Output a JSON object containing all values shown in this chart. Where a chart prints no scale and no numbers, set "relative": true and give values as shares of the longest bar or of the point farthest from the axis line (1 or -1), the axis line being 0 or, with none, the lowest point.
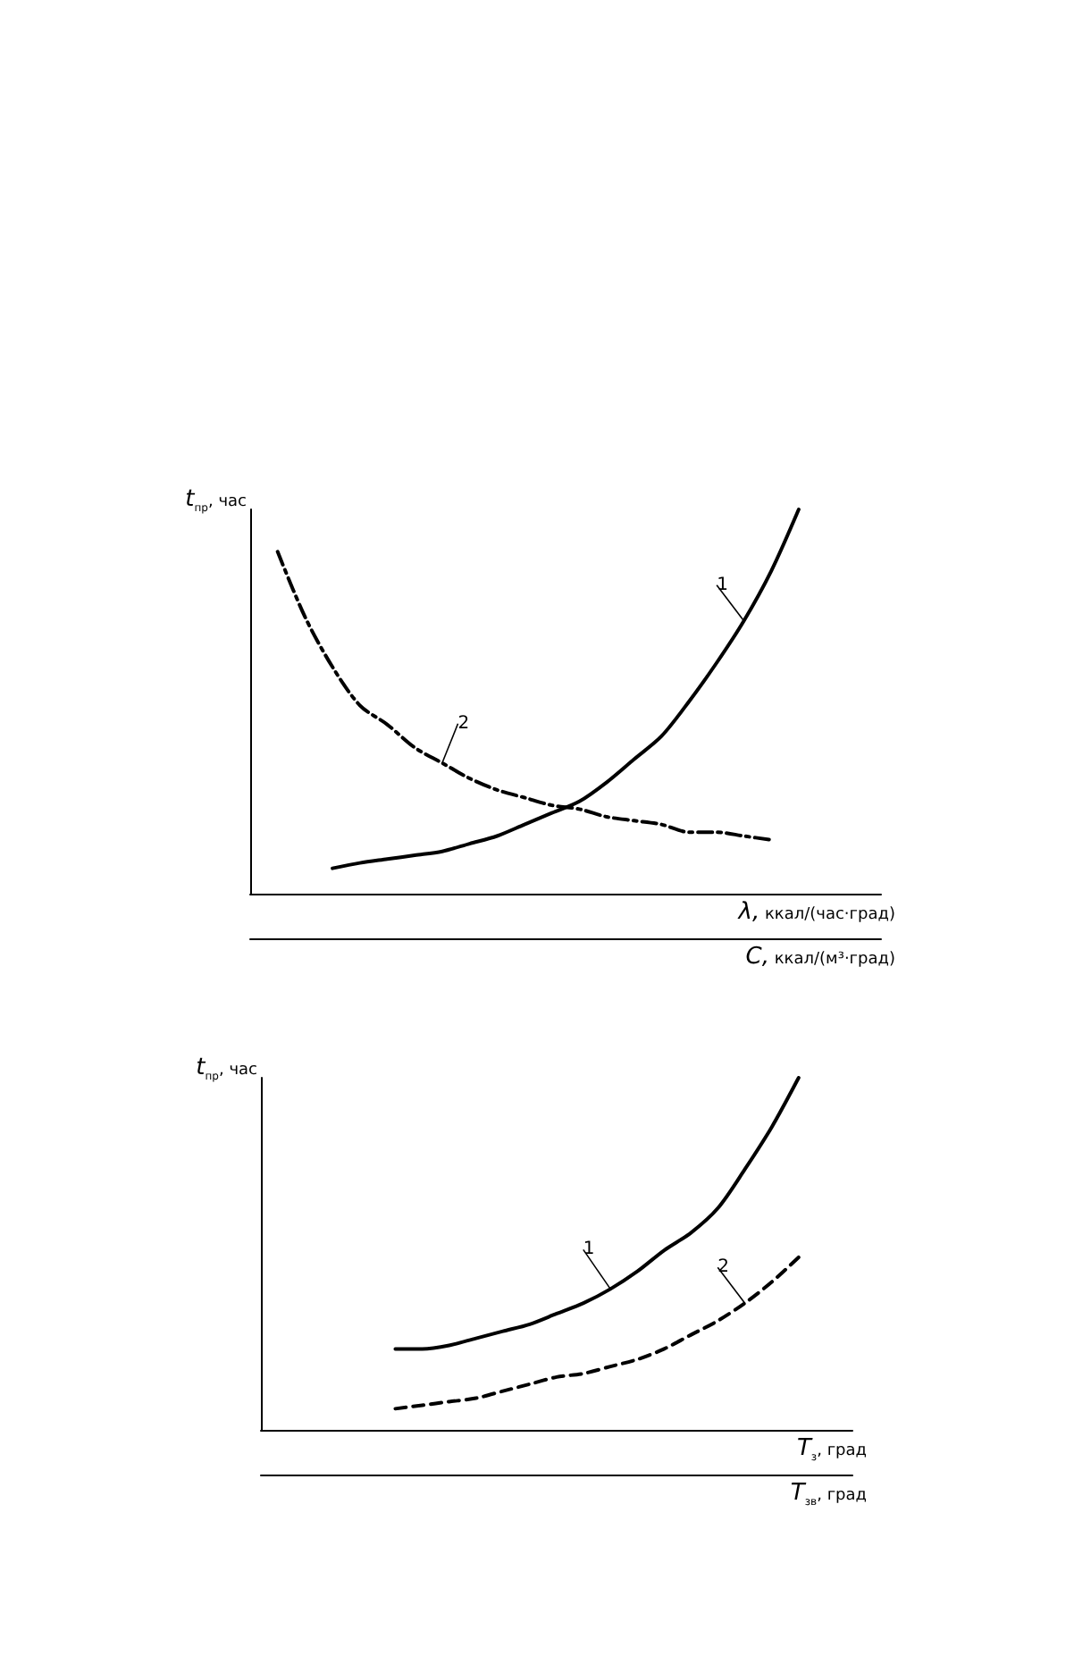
{
  "chart_data": [
    {
      "type": "line",
      "relative": true,
      "ylabel": "t$_{пр}$, час",
      "xlabel": "λ, ккал/(час·град)",
      "x2label": "C, ккал/(м³·град)",
      "grid": false,
      "legend": false,
      "categories": [
        null,
        null,
        null,
        null,
        null,
        null,
        null,
        null,
        null,
        null,
        null,
        null,
        null,
        null,
        null,
        null,
        null,
        null,
        null,
        null,
        null,
        null,
        null,
        null
      ],
      "series": [
        {
          "name": "1",
          "color": "#000000",
          "line_style": "solid",
          "values": [
            null,
            null,
            null,
            0.066,
            0.08,
            0.09,
            0.1,
            0.11,
            0.13,
            0.15,
            0.18,
            0.21,
            0.24,
            0.29,
            0.35,
            0.41,
            0.5,
            0.6,
            0.71,
            0.84,
            1,
            null,
            null,
            null
          ]
        },
        {
          "name": "2",
          "color": "#000000",
          "line_style": "dashdot",
          "values": [
            null,
            0.89,
            0.72,
            0.59,
            0.49,
            0.44,
            0.38,
            0.34,
            0.3,
            0.27,
            0.25,
            0.23,
            0.22,
            0.2,
            0.19,
            0.18,
            0.16,
            0.16,
            0.15,
            0.14,
            null,
            null,
            null,
            null
          ]
        }
      ]
    },
    {
      "type": "line",
      "relative": true,
      "ylabel": "t$_{пр}$, час",
      "xlabel": "T$_{з}$, град",
      "x2label": "T$_{зв}$, град",
      "grid": false,
      "legend": false,
      "categories": [
        null,
        null,
        null,
        null,
        null,
        null,
        null,
        null,
        null,
        null,
        null,
        null,
        null,
        null,
        null,
        null,
        null,
        null,
        null,
        null,
        null,
        null,
        null
      ],
      "series": [
        {
          "name": "1",
          "color": "#000000",
          "line_style": "solid",
          "values": [
            null,
            null,
            null,
            null,
            null,
            0.23,
            0.23,
            0.24,
            0.26,
            0.28,
            0.3,
            0.33,
            0.36,
            0.4,
            0.45,
            0.51,
            0.56,
            0.63,
            0.74,
            0.86,
            1,
            null,
            null
          ]
        },
        {
          "name": "2",
          "color": "#000000",
          "line_style": "dashed",
          "values": [
            null,
            null,
            null,
            null,
            null,
            0.06,
            0.07,
            0.08,
            0.09,
            0.11,
            0.13,
            0.15,
            0.16,
            0.18,
            0.2,
            0.23,
            0.27,
            0.31,
            0.36,
            0.42,
            0.49,
            null,
            null
          ]
        }
      ]
    }
  ]
}
